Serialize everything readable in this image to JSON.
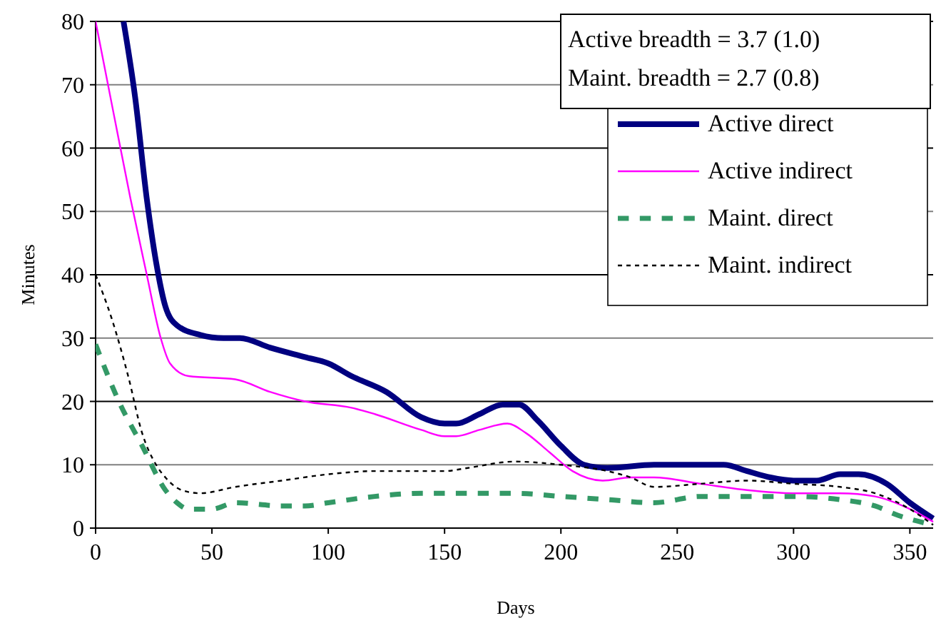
{
  "chart_data": {
    "type": "line",
    "xlabel": "Days",
    "ylabel": "Minutes",
    "xlim": [
      0,
      360
    ],
    "xticks": [
      0,
      50,
      100,
      150,
      200,
      250,
      300,
      350
    ],
    "ylim": [
      0,
      80
    ],
    "yticks": [
      0,
      10,
      20,
      30,
      40,
      50,
      60,
      70,
      80
    ],
    "grid": "y",
    "legend": "top right",
    "annotations": [
      "Active breadth = 3.7 (1.0)",
      "Maint. breadth = 2.7 (0.8)"
    ],
    "series": [
      {
        "name": "Active direct",
        "color": "#000080",
        "line_style": "solid",
        "x": [
          12,
          17,
          22,
          26,
          30,
          35,
          45,
          55,
          62,
          75,
          90,
          100,
          110,
          125,
          140,
          150,
          155,
          165,
          175,
          182,
          190,
          200,
          210,
          220,
          240,
          270,
          280,
          290,
          300,
          310,
          320,
          328,
          340,
          350,
          360
        ],
        "values": [
          80,
          68,
          52,
          42,
          35,
          32,
          30.5,
          30,
          30,
          28.5,
          27,
          26,
          24,
          21.5,
          17.5,
          16.5,
          16.5,
          18,
          19.5,
          19.5,
          17,
          13,
          10,
          9.5,
          10,
          10,
          9,
          8,
          7.5,
          7.5,
          8.5,
          8.5,
          7,
          4,
          1.5
        ]
      },
      {
        "name": "Active indirect",
        "color": "#ff00ff",
        "line_style": "solid",
        "x": [
          0,
          8,
          15,
          22,
          28,
          32,
          40,
          60,
          75,
          90,
          110,
          120,
          140,
          150,
          155,
          165,
          177,
          185,
          195,
          205,
          218,
          230,
          240,
          260,
          280,
          300,
          320,
          335,
          350,
          360
        ],
        "values": [
          80,
          65,
          52,
          40,
          30,
          26,
          24,
          23.5,
          21.5,
          20,
          19,
          18,
          15.5,
          14.5,
          14.5,
          15.5,
          16.5,
          15,
          12,
          9,
          7.5,
          8,
          8,
          7,
          6,
          5.5,
          5.5,
          5,
          3,
          1
        ]
      },
      {
        "name": "Maint. direct",
        "color": "#339966",
        "line_style": "dashed",
        "x": [
          0,
          10,
          20,
          30,
          35,
          40,
          50,
          60,
          80,
          90,
          100,
          120,
          140,
          160,
          180,
          200,
          220,
          240,
          260,
          280,
          300,
          320,
          335,
          345,
          360
        ],
        "values": [
          29,
          20,
          13,
          6,
          4,
          3,
          3,
          4,
          3.5,
          3.5,
          4,
          5,
          5.5,
          5.5,
          5.5,
          5,
          4.5,
          4,
          5,
          5,
          5,
          4.5,
          3.5,
          2,
          0.5
        ]
      },
      {
        "name": "Maint. indirect",
        "color": "#000000",
        "line_style": "dotted",
        "x": [
          0,
          7,
          14,
          20,
          26,
          30,
          37,
          45,
          60,
          80,
          100,
          120,
          150,
          160,
          180,
          200,
          220,
          230,
          240,
          260,
          280,
          300,
          320,
          335,
          350,
          360
        ],
        "values": [
          40,
          33,
          24,
          15,
          10,
          8,
          6,
          5.5,
          6.5,
          7.5,
          8.5,
          9,
          9,
          9.5,
          10.5,
          10,
          9,
          8,
          6.5,
          7,
          7.5,
          7,
          6.5,
          5.5,
          3,
          0.5
        ]
      }
    ]
  }
}
